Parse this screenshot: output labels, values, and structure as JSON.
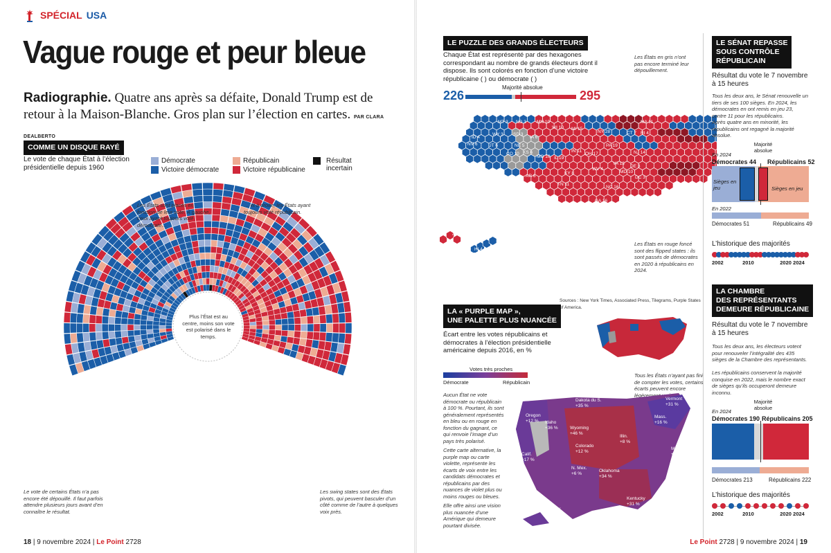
{
  "header": {
    "section_1": "SPÉCIAL",
    "section_2": "USA",
    "title": "Vague rouge et peur bleue",
    "lede_kicker": "Radiographie.",
    "lede_text": "Quatre ans après sa défaite, Donald Trump est de retour à la Maison-Blanche. Gros plan sur l’élection en cartes.",
    "byline": "PAR CLARA DEALBERTO"
  },
  "disc": {
    "tag": "COMME UN DISQUE RAYÉ",
    "intro": "Le vote de chaque État à l’élection présidentielle depuis 1960",
    "legend": {
      "dem": "Démocrate",
      "dem_win": "Victoire démocrate",
      "rep": "Républicain",
      "rep_win": "Victoire républicaine",
      "uncertain": "Résultat incertain"
    },
    "note_left": "Les États sont placés en fonction de leur vote. À gauche, ceux ayant toujours voté démocrate…",
    "note_right": "… et à droite, les États ayant toujours voté républicain.",
    "note_center": "Plus l’État est au centre, moins son vote est polarisé dans le temps.",
    "note_bottom_left": "Le vote de certains États n’a pas encore été dépouillé. Il faut parfois attendre plusieurs jours avant d’en connaître le résultat.",
    "note_bottom_right": "Les swing states sont des États pivots, qui peuvent basculer d’un côté comme de l’autre à quelques voix près.",
    "years_left": [
      "2024",
      "2020",
      "2016",
      "2012",
      "2008",
      "2004",
      "2000",
      "1996",
      "1992",
      "1988",
      "1984",
      "1980",
      "1976",
      "1972",
      "1968",
      "1964",
      "1960"
    ],
    "years_right": [
      "2024",
      "2020",
      "2016",
      "2012",
      "2008",
      "2004",
      "2000",
      "1996",
      "1992",
      "1988",
      "1984",
      "1980",
      "1976",
      "1972",
      "1968",
      "1964",
      "1960"
    ],
    "states_left": [
      "D.C.",
      "MINNESOTA",
      "HAWAÏ",
      "RHODE ISLAND",
      "MASSACHUSETTS",
      "NEW YORK",
      "WASHINGTON",
      "OREGON",
      "MARYLAND",
      "DELAWARE",
      "CONNECTICUT",
      "MAINE",
      "ILLINOIS",
      "NEW JERSEY",
      "CALIFORNIE",
      "VERMONT",
      "NEW HAMPSHIRE",
      "NEW MEXICO"
    ],
    "states_right": [
      "NEBRASKA",
      "WYOMING",
      "UTAH",
      "DAKOTA DU SUD",
      "OKLAHOMA",
      "DAKOTA DU NORD",
      "KANSAS",
      "IDAHO",
      "ALASKA",
      "CAROLINE DU SUD",
      "TEXAS",
      "MISSISSIPPI",
      "ALABAMA",
      "MONTANA",
      "TENNESSEE",
      "KENTUCKY",
      "MISSOURI",
      "LOUISIANE"
    ],
    "states_bottom": [
      "NEVADA",
      "COLORADO",
      "VIRGINIE",
      "WISCONSIN",
      "PENNSYLV.",
      "MICHIGAN",
      "ARIZONA",
      "GÉORGIE",
      "IOWA",
      "OHIO",
      "FLORIDE",
      "CAROLINE DU NORD",
      "INDIANA",
      "VIRGINIE-OCCIDENTALE",
      "ARKANSAS"
    ],
    "colors": {
      "dem_light": "#9aaed6",
      "dem_win": "#1b5ea8",
      "rep_light": "#eeab93",
      "rep_win": "#d0283a",
      "uncertain": "#111111"
    }
  },
  "puzzle": {
    "tag": "LE PUZZLE DES GRANDS ÉLECTEURS",
    "text": "Chaque État est représenté par des hexagones correspondant au nombre de grands électeurs dont il dispose. Ils sont colorés en fonction d’une victoire républicaine ( ) ou démocrate ( )",
    "note_grey": "Les États en gris n’ont pas encore terminé leur dépouillement.",
    "note_red": "Les États en rouge foncé sont des flipped states : ils sont passés de démocrates en 2020 à républicains en 2024.",
    "dem_total": "226",
    "rep_total": "295",
    "majority_label": "Majorité absolue",
    "dem_value": 226,
    "rep_value": 295,
    "total": 538,
    "sources": "Sources : New York Times, Associated Press, Tilegrams, Purple States of America.",
    "hex_labels": [
      {
        "t": "WA 12",
        "c": "d"
      },
      {
        "t": "MT 3",
        "c": "r"
      },
      {
        "t": "ND 3",
        "c": "r"
      },
      {
        "t": "MN 10",
        "c": "d"
      },
      {
        "t": "WI 10",
        "c": "f"
      },
      {
        "t": "MI 15",
        "c": "f"
      },
      {
        "t": "NY 28",
        "c": "d"
      },
      {
        "t": "VT 3",
        "c": "d"
      },
      {
        "t": "NH 4",
        "c": "d"
      },
      {
        "t": "ME 4",
        "c": "g"
      },
      {
        "t": "MA 11",
        "c": "d"
      },
      {
        "t": "RI 4",
        "c": "d"
      },
      {
        "t": "CT 7",
        "c": "d"
      },
      {
        "t": "OR 8",
        "c": "d"
      },
      {
        "t": "ID 4",
        "c": "r"
      },
      {
        "t": "WY 3",
        "c": "r"
      },
      {
        "t": "SD 3",
        "c": "r"
      },
      {
        "t": "IA 6",
        "c": "r"
      },
      {
        "t": "NV 6",
        "c": "g"
      },
      {
        "t": "UT 6",
        "c": "r"
      },
      {
        "t": "CO 10",
        "c": "d"
      },
      {
        "t": "KS 6",
        "c": "r"
      },
      {
        "t": "NE 5",
        "c": "r"
      },
      {
        "t": "MO 10",
        "c": "r"
      },
      {
        "t": "IL 19",
        "c": "d"
      },
      {
        "t": "IN 11",
        "c": "r"
      },
      {
        "t": "OH 17",
        "c": "r"
      },
      {
        "t": "PA 19",
        "c": "f"
      },
      {
        "t": "NJ 14",
        "c": "d"
      },
      {
        "t": "CA 54",
        "c": "d"
      },
      {
        "t": "AZ 11",
        "c": "g"
      },
      {
        "t": "NM 5",
        "c": "d"
      },
      {
        "t": "OK 7",
        "c": "r"
      },
      {
        "t": "AR 6",
        "c": "r"
      },
      {
        "t": "KY 8",
        "c": "r"
      },
      {
        "t": "WV 4",
        "c": "r"
      },
      {
        "t": "VA 13",
        "c": "d"
      },
      {
        "t": "MD 10",
        "c": "d"
      },
      {
        "t": "DE 3",
        "c": "d"
      },
      {
        "t": "DC 3",
        "c": "d"
      },
      {
        "t": "TN 11",
        "c": "r"
      },
      {
        "t": "NC 16",
        "c": "r"
      },
      {
        "t": "TX 40",
        "c": "r"
      },
      {
        "t": "LA 8",
        "c": "r"
      },
      {
        "t": "MS 6",
        "c": "r"
      },
      {
        "t": "AL 9",
        "c": "r"
      },
      {
        "t": "GA 16",
        "c": "f"
      },
      {
        "t": "SC 9",
        "c": "r"
      },
      {
        "t": "FL 30",
        "c": "r"
      },
      {
        "t": "AK 3",
        "c": "r"
      },
      {
        "t": "HI 4",
        "c": "d"
      }
    ]
  },
  "purple": {
    "tag_1": "LA « PURPLE MAP »,",
    "tag_2": "UNE PALETTE PLUS NUANCÉE",
    "text": "Écart entre les votes républicains et démocrates à l’élection présidentielle américaine depuis 2016, en %",
    "scale_title": "Votes très proches",
    "scale_left": "Démocrate",
    "scale_right": "Républicain",
    "note_pending": "Tous les États n’ayant pas fini de compter les votes, certains écarts peuvent encore légèrement varier.",
    "body_1": "Aucun État ne vote démocrate ou républicain à 100 %. Pourtant, ils sont généralement représentés en bleu ou en rouge en fonction du gagnant, ce qui renvoie l’image d’un pays très polarisé.",
    "body_2": "Cette carte alternative, la purple map ou carte violette, représente les écarts de voix entre les candidats démocrates et républicains par des nuances de violet plus ou moins rouges ou bleues.",
    "body_3": "Elle offre ainsi une vision plus nuancée d’une Amérique qui demeure pourtant divisée.",
    "annotations": [
      {
        "n": "Washington",
        "v": "+20 %"
      },
      {
        "n": "Dakota du N.",
        "v": "+37 %"
      },
      {
        "n": "Dakota du S.",
        "v": "+35 %"
      },
      {
        "n": "Vermont",
        "v": "+31 %"
      },
      {
        "n": "Oregon",
        "v": "+12 %"
      },
      {
        "n": "Idaho",
        "v": "+36 %"
      },
      {
        "n": "Wyoming",
        "v": "+46 %"
      },
      {
        "n": "Mass.",
        "v": "+16 %"
      },
      {
        "n": "Illin.",
        "v": "+8 %"
      },
      {
        "n": "Calif.",
        "v": "+17 %"
      },
      {
        "n": "Colorado",
        "v": "+12 %"
      },
      {
        "n": "Maryl.",
        "v": "+23 %"
      },
      {
        "n": "N. Mex.",
        "v": "+6 %"
      },
      {
        "n": "Oklahoma",
        "v": "+34 %"
      },
      {
        "n": "D.C.",
        "v": "+85 %"
      },
      {
        "n": "Kentucky",
        "v": "+31 %"
      },
      {
        "n": "Virginie occ.",
        "v": "+42 %"
      },
      {
        "n": "Hawaï",
        "v": "+24 %"
      }
    ]
  },
  "senate": {
    "tag_1": "LE SÉNAT REPASSE",
    "tag_2": "SOUS CONTRÔLE",
    "tag_3": "RÉPUBLICAIN",
    "subtitle": "Résultat du vote le 7 novembre à 15 heures",
    "note_1": "Tous les deux ans, le Sénat renouvelle un tiers de ses 100 sièges. En 2024, les démocrates en ont remis en jeu 23, contre 11 pour les républicains.",
    "note_2": "Après quatre ans en minorité, les républicains ont regagné la majorité absolue.",
    "year_2024": "En 2024",
    "majority": "Majorité absolue",
    "dem_label": "Démocrates 44",
    "rep_label": "Républicains 52",
    "dem_2024": 44,
    "rep_2024": 52,
    "seats_in_play": "Sièges en jeu",
    "year_2022": "En 2022",
    "dem_2022_label": "Démocrates 51",
    "rep_2022_label": "Républicains 49",
    "dem_2022": 51,
    "rep_2022": 49,
    "history_title": "L’historique des majorités",
    "history_years": [
      "2002",
      "2010",
      "2020",
      "2024"
    ],
    "history": [
      "r",
      "d",
      "r",
      "r",
      "d",
      "d",
      "d",
      "d",
      "d",
      "r",
      "r",
      "r",
      "d",
      "d",
      "d",
      "d",
      "d",
      "d",
      "d",
      "d",
      "r",
      "r",
      "r"
    ]
  },
  "house": {
    "tag_1": "LA CHAMBRE",
    "tag_2": "DES REPRÉSENTANTS",
    "tag_3": "DEMEURE RÉPUBLICAINE",
    "subtitle": "Résultat du vote le 7 novembre à 15 heures",
    "note": "Tous les deux ans, les électeurs votent pour renouveler l’intégralité des 435 sièges de la Chambre des représentants.",
    "note_2": "Les républicains conservent la majorité conquise en 2022, mais le nombre exact de sièges qu’ils occuperont demeure inconnu.",
    "year_2024": "En 2024",
    "majority": "Majorité absolue",
    "dem_label": "Démocrates 190",
    "rep_label": "Républicains 205",
    "dem_2024": 190,
    "rep_2024": 205,
    "dem_2022_label": "Démocrates 213",
    "rep_2022_label": "Républicains 222",
    "dem_2022": 213,
    "rep_2022": 222,
    "history_title": "L’historique des majorités",
    "history_years": [
      "2002",
      "2010",
      "2020",
      "2024"
    ],
    "history": [
      "r",
      "r",
      "d",
      "d",
      "r",
      "r",
      "r",
      "r",
      "r",
      "d",
      "r",
      "r"
    ]
  },
  "footer": {
    "left_page": "18",
    "left_date": "9 novembre 2024",
    "brand": "Le Point",
    "issue": "2728",
    "right_date": "9 novembre 2024",
    "right_page": "19"
  }
}
